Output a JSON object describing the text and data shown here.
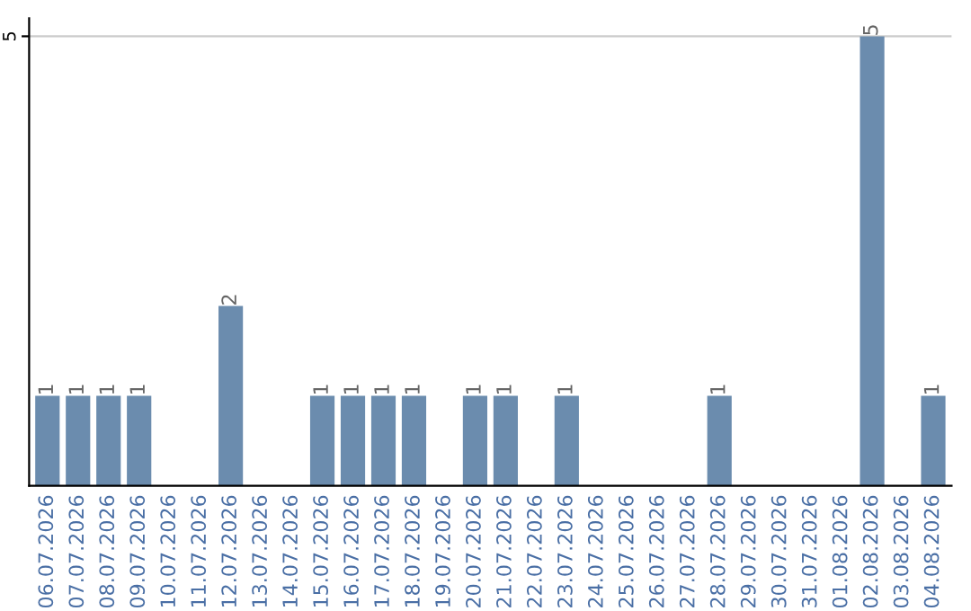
{
  "chart_data": {
    "type": "bar",
    "categories": [
      "06.07.2026",
      "07.07.2026",
      "08.07.2026",
      "09.07.2026",
      "10.07.2026",
      "11.07.2026",
      "12.07.2026",
      "13.07.2026",
      "14.07.2026",
      "15.07.2026",
      "16.07.2026",
      "17.07.2026",
      "18.07.2026",
      "19.07.2026",
      "20.07.2026",
      "21.07.2026",
      "22.07.2026",
      "23.07.2026",
      "24.07.2026",
      "25.07.2026",
      "26.07.2026",
      "27.07.2026",
      "28.07.2026",
      "29.07.2026",
      "30.07.2026",
      "31.07.2026",
      "01.08.2026",
      "02.08.2026",
      "03.08.2026",
      "04.08.2026"
    ],
    "values": [
      1,
      1,
      1,
      1,
      0,
      0,
      2,
      0,
      0,
      1,
      1,
      1,
      1,
      0,
      1,
      1,
      0,
      1,
      0,
      0,
      0,
      0,
      1,
      0,
      0,
      0,
      0,
      5,
      0,
      1
    ],
    "value_labels": [
      "1",
      "1",
      "1",
      "1",
      null,
      null,
      "2",
      null,
      null,
      "1",
      "1",
      "1",
      "1",
      null,
      "1",
      "1",
      null,
      "1",
      null,
      null,
      null,
      null,
      "1",
      null,
      null,
      null,
      null,
      "5",
      null,
      "1"
    ],
    "color": "#6b8cae",
    "ylim": [
      0,
      5.2
    ],
    "yticks": [
      5
    ],
    "grid": "y"
  }
}
